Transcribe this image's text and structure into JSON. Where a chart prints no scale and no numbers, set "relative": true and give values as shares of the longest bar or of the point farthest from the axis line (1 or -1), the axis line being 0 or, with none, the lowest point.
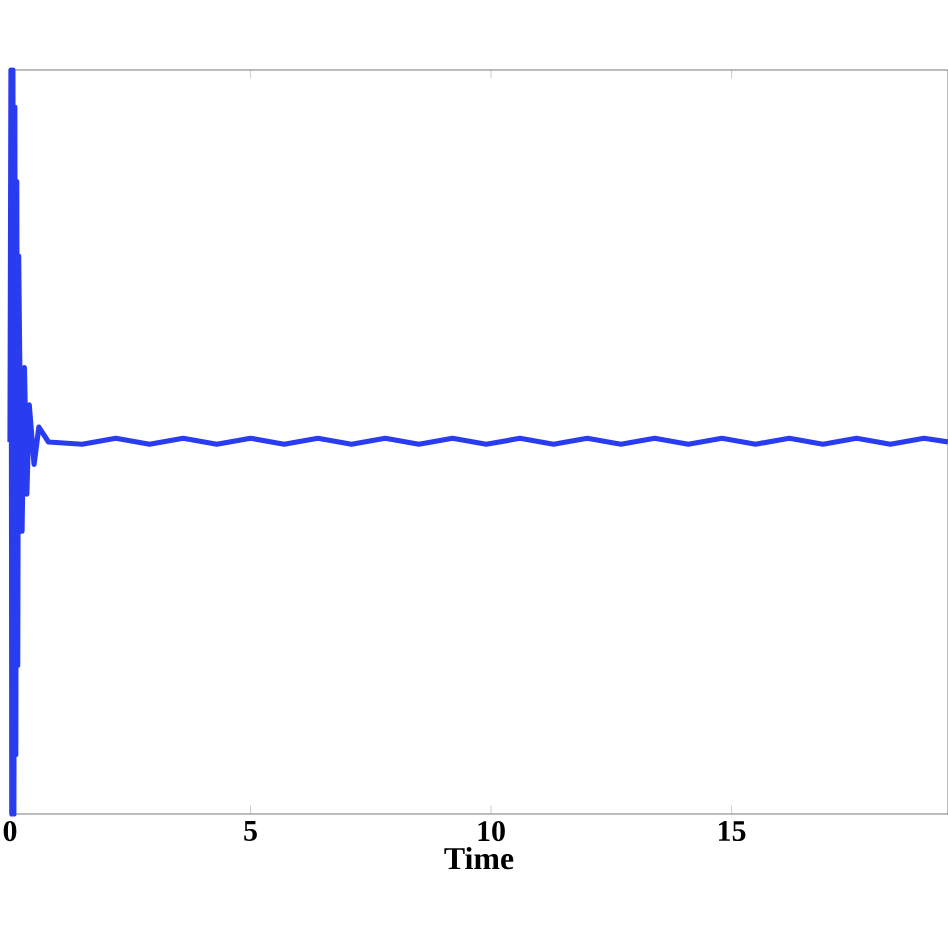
{
  "chart_data": {
    "type": "line",
    "xlabel": "Time",
    "relative": true,
    "xlim": [
      0,
      19.5
    ],
    "xticks": [
      0,
      5,
      10,
      15
    ],
    "color": "#2a3cf0",
    "marker": "none",
    "line_style": "solid",
    "x": [
      0,
      0.02,
      0.04,
      0.06,
      0.08,
      0.1,
      0.12,
      0.14,
      0.16,
      0.18,
      0.2,
      0.25,
      0.3,
      0.35,
      0.4,
      0.5,
      0.6,
      0.8,
      1.5,
      2.2,
      2.9,
      3.6,
      4.3,
      5.0,
      5.7,
      6.4,
      7.1,
      7.8,
      8.5,
      9.2,
      9.9,
      10.6,
      11.3,
      12.0,
      12.7,
      13.4,
      14.1,
      14.8,
      15.5,
      16.2,
      16.9,
      17.6,
      18.3,
      19.0,
      19.5
    ],
    "values": [
      0.5,
      1,
      0,
      1,
      0,
      0.95,
      0.08,
      0.85,
      0.2,
      0.75,
      0.62,
      0.38,
      0.6,
      0.43,
      0.55,
      0.47,
      0.52,
      0.5,
      0.497,
      0.505,
      0.497,
      0.505,
      0.497,
      0.505,
      0.497,
      0.505,
      0.497,
      0.505,
      0.497,
      0.505,
      0.497,
      0.505,
      0.497,
      0.505,
      0.497,
      0.505,
      0.497,
      0.505,
      0.497,
      0.505,
      0.497,
      0.505,
      0.497,
      0.505,
      0.5
    ]
  }
}
